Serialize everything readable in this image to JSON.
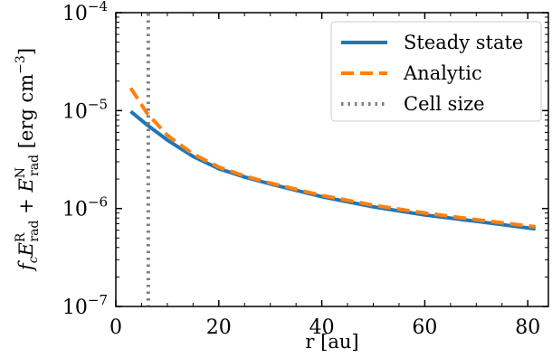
{
  "chart_data": {
    "type": "line",
    "xlabel": "r [au]",
    "ylabel": "f_c E_rad^R + E_rad^N [erg cm^-3]",
    "xlim": [
      0,
      84
    ],
    "ylim": [
      1e-07,
      0.0001
    ],
    "yscale": "log",
    "xticks": [
      0,
      20,
      40,
      60,
      80
    ],
    "yticks": [
      {
        "value": 0.0001,
        "base": "10",
        "exp": "−4"
      },
      {
        "value": 1e-05,
        "base": "10",
        "exp": "−5"
      },
      {
        "value": 1e-06,
        "base": "10",
        "exp": "−6"
      },
      {
        "value": 1e-07,
        "base": "10",
        "exp": "−7"
      }
    ],
    "grid": false,
    "legend_position": "top-right",
    "series": [
      {
        "name": "Steady state",
        "style": "solid",
        "color": "#1f77b4",
        "x": [
          2.9,
          6,
          10,
          15,
          20,
          25,
          30,
          40,
          50,
          60,
          70,
          81.5
        ],
        "y": [
          9.8e-06,
          7.2e-06,
          5e-06,
          3.4e-06,
          2.55e-06,
          2.1e-06,
          1.78e-06,
          1.32e-06,
          1.04e-06,
          8.6e-07,
          7.4e-07,
          6.2e-07
        ]
      },
      {
        "name": "Analytic",
        "style": "dashed",
        "color": "#ff7f0e",
        "x": [
          2.9,
          6,
          10,
          15,
          20,
          25,
          30,
          40,
          50,
          60,
          70,
          81.5
        ],
        "y": [
          1.7e-05,
          9.5e-06,
          5.6e-06,
          3.6e-06,
          2.65e-06,
          2.15e-06,
          1.82e-06,
          1.36e-06,
          1.08e-06,
          9e-07,
          7.7e-07,
          6.5e-07
        ]
      }
    ],
    "vlines": [
      {
        "name": "Cell size",
        "style": "dotted",
        "color": "#7f7f7f",
        "x": 6.3
      }
    ]
  }
}
